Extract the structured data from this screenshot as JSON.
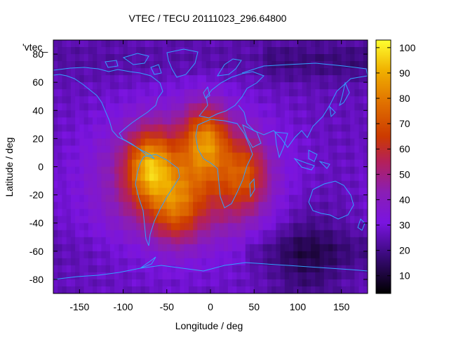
{
  "chart_data": {
    "type": "heatmap",
    "title": "VTEC / TECU 20111023_296.64800",
    "xlabel": "Longitude / deg",
    "ylabel": "Latitude / deg",
    "xlim": [
      -180,
      180
    ],
    "ylim": [
      -90,
      90
    ],
    "x_ticks": [
      "-150",
      "-100",
      "-50",
      "0",
      "50",
      "100",
      "150"
    ],
    "y_ticks": [
      "80",
      "60",
      "40",
      "20",
      "0",
      "-20",
      "-40",
      "-60",
      "-80"
    ],
    "key_label": "'vtec_",
    "colorbar": {
      "range": [
        3,
        103
      ],
      "ticks": [
        "100",
        "90",
        "80",
        "70",
        "60",
        "50",
        "40",
        "30",
        "20",
        "10"
      ],
      "palette": "black-purple-red-orange-yellow"
    },
    "field": {
      "background_tecu": 26,
      "features": [
        {
          "name": "equatorial anomaly crest over South America",
          "lon": -70,
          "lat": 0,
          "peak_tecu": 95
        },
        {
          "name": "northern crest over Africa / Sahara",
          "lon": -5,
          "lat": 20,
          "peak_tecu": 92
        },
        {
          "name": "Atlantic / eastern Africa extension",
          "lon": 40,
          "lat": -5,
          "peak_tecu": 72
        },
        {
          "name": "southern Atlantic region",
          "lon": -40,
          "lat": -30,
          "peak_tecu": 65
        },
        {
          "name": "night-side minimum near Antarctica",
          "lon": 110,
          "lat": -65,
          "peak_tecu": 8
        }
      ]
    }
  }
}
